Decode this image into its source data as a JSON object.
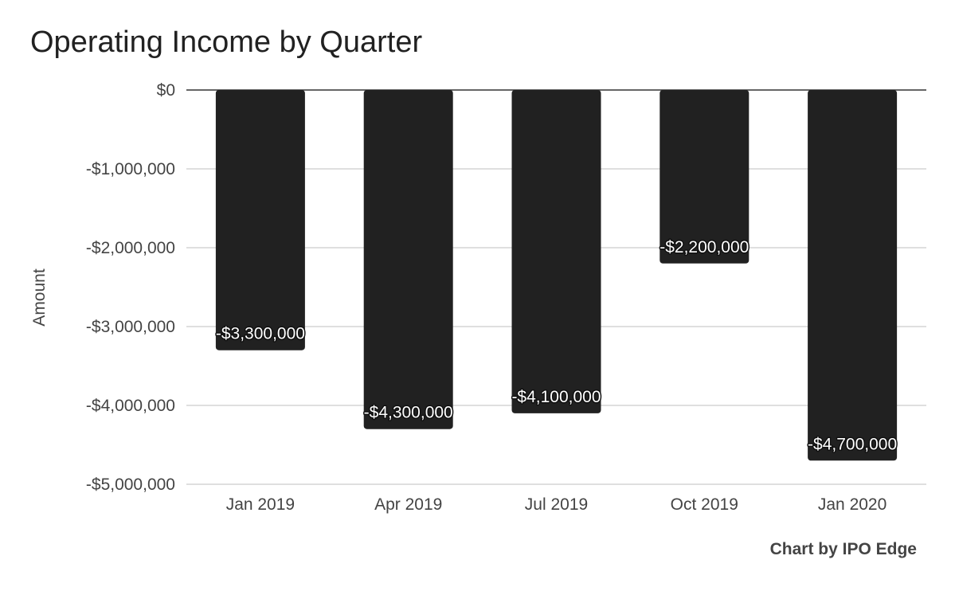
{
  "chart_data": {
    "type": "bar",
    "title": "Operating Income by Quarter",
    "ylabel": "Amount",
    "xlabel": "",
    "categories": [
      "Jan 2019",
      "Apr 2019",
      "Jul 2019",
      "Oct 2019",
      "Jan 2020"
    ],
    "values": [
      -3300000,
      -4300000,
      -4100000,
      -2200000,
      -4700000
    ],
    "data_labels": [
      "-$3,300,000",
      "-$4,300,000",
      "-$4,100,000",
      "-$2,200,000",
      "-$4,700,000"
    ],
    "ylim": [
      -5000000,
      0
    ],
    "yticks": [
      0,
      -1000000,
      -2000000,
      -3000000,
      -4000000,
      -5000000
    ],
    "ytick_labels": [
      "$0",
      "-$1,000,000",
      "-$2,000,000",
      "-$3,000,000",
      "-$4,000,000",
      "-$5,000,000"
    ],
    "grid": true,
    "legend": "none",
    "bar_color": "#212121",
    "credit": "Chart by IPO Edge"
  }
}
